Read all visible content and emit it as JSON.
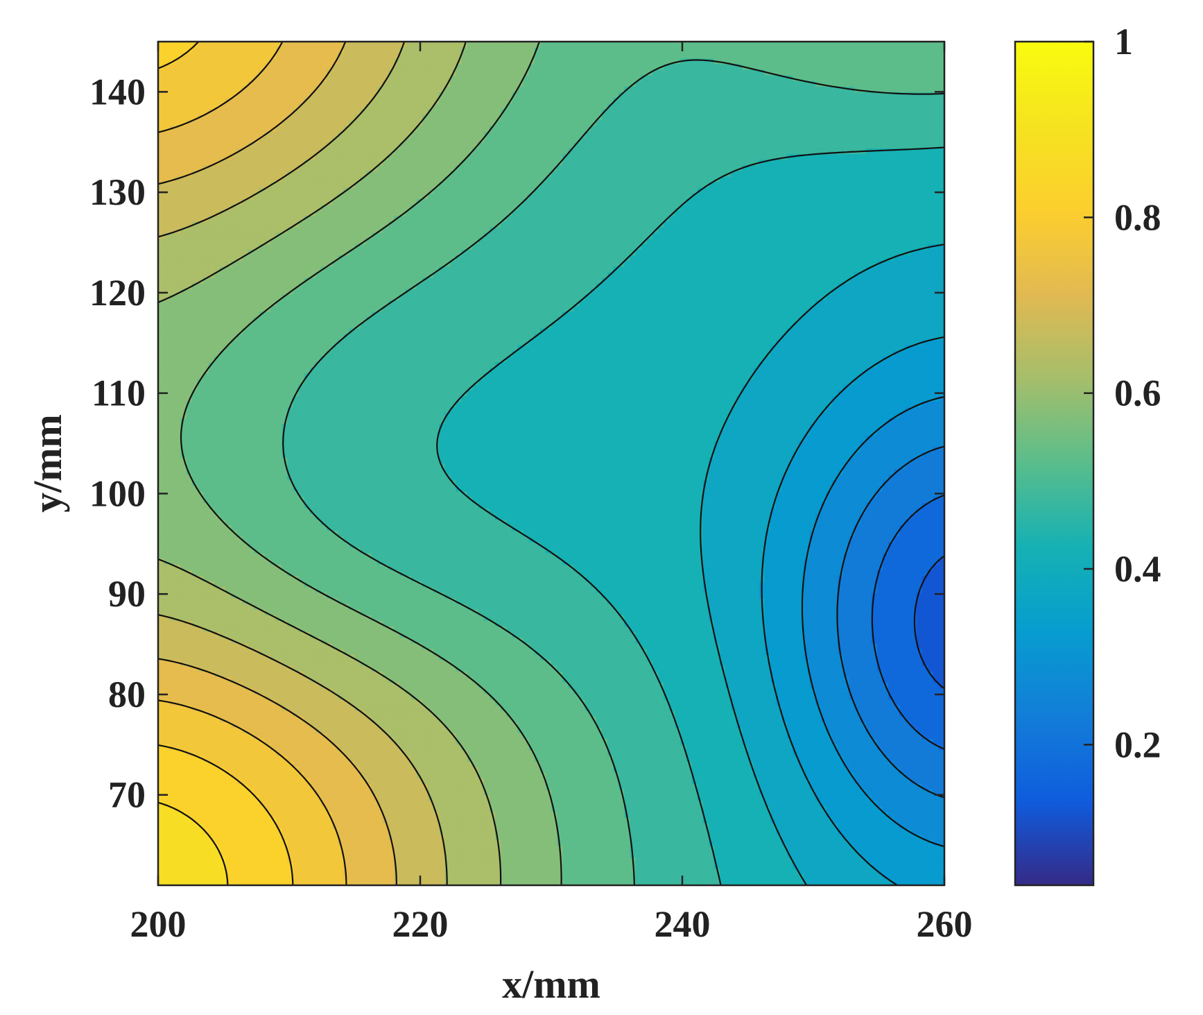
{
  "chart_data": {
    "type": "contour",
    "xlabel": "x/mm",
    "ylabel": "y/mm",
    "xlim": [
      200,
      260
    ],
    "ylim": [
      61,
      145
    ],
    "x_ticks": [
      200,
      220,
      240,
      260
    ],
    "x_tick_labels": [
      "200",
      "220",
      "240",
      "260"
    ],
    "y_ticks": [
      70,
      80,
      90,
      100,
      110,
      120,
      130,
      140
    ],
    "y_tick_labels": [
      "70",
      "80",
      "90",
      "100",
      "110",
      "120",
      "130",
      "140"
    ],
    "colorbar": {
      "colormap": "parula",
      "range": [
        0.04,
        1.0
      ],
      "ticks": [
        0.2,
        0.4,
        0.6,
        0.8,
        1.0
      ],
      "tick_labels": [
        "0.2",
        "0.4",
        "0.6",
        "0.8",
        "1"
      ]
    },
    "contour_step": 0.05,
    "field_summary": {
      "minimum": {
        "x": 260,
        "y": 87,
        "value": 0.13
      },
      "local_maxima": [
        {
          "x": 200,
          "y": 61,
          "value": 0.84
        },
        {
          "x": 200,
          "y": 145,
          "value": 0.8
        }
      ],
      "plateau": {
        "x": 228,
        "y": 116,
        "value": 0.42
      }
    },
    "grid": false,
    "colorbar_position": "right"
  }
}
